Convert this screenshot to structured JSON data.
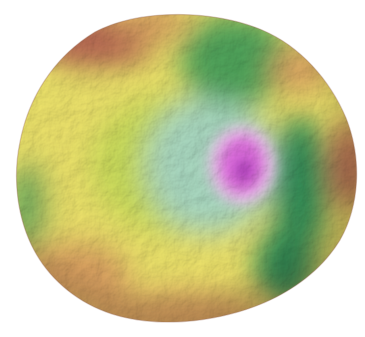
{
  "image": {
    "subject": "geoid-relief-render",
    "background_color": "#ffffff",
    "palette": {
      "low": "#b23fbf",
      "low_mid": "#e070e0",
      "trough": "#2e8a55",
      "green": "#4fa35a",
      "teal": "#a9d8c0",
      "yellow_green": "#c9dc5a",
      "yellow": "#ece26a",
      "orange": "#d9a060",
      "high": "#b86a52"
    }
  }
}
